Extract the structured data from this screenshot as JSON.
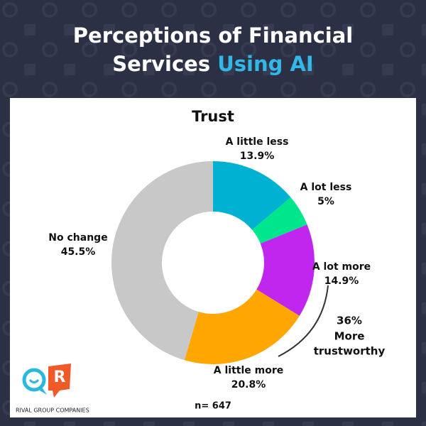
{
  "chart_data": {
    "type": "donut",
    "header_lines": [
      "Perceptions of Financial",
      "Services"
    ],
    "header_highlight": "Using AI",
    "title": "Trust",
    "categories": [
      "A little less",
      "A lot less",
      "A lot more",
      "A little more",
      "No change"
    ],
    "values": [
      13.9,
      5,
      14.9,
      20.8,
      45.5
    ],
    "value_labels": [
      "13.9%",
      "5%",
      "14.9%",
      "20.8%",
      "45.5%"
    ],
    "colors": [
      "#00b1d2",
      "#00e68c",
      "#c126ef",
      "#ffa600",
      "#c8c8c8"
    ],
    "annotation": [
      "36%",
      "More",
      "trustworthy"
    ],
    "sample": "n= 647",
    "logo_letter": "R",
    "logo_text": "RIVAL GROUP COMPANIES"
  }
}
